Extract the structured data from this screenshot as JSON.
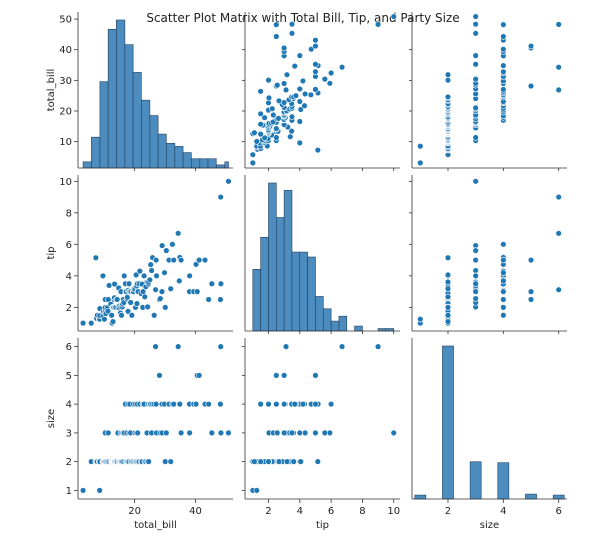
{
  "chart_data": {
    "type": "scatter",
    "title": "Scatter Plot Matrix with Total Bill, Tip, and Party Size",
    "variables": [
      "total_bill",
      "tip",
      "size"
    ],
    "axis_labels": {
      "total_bill": "total_bill",
      "tip": "tip",
      "size": "size"
    },
    "axis_ranges": {
      "total_bill": [
        1.4,
        52.3
      ],
      "tip": [
        0.5,
        10.4
      ],
      "size": [
        0.7,
        6.3
      ]
    },
    "ticks": {
      "total_bill": [
        10,
        20,
        30,
        40,
        50
      ],
      "tip": [
        2,
        4,
        6,
        8,
        10
      ],
      "size": [
        1,
        2,
        3,
        4,
        5,
        6
      ],
      "total_bill_x": [
        20,
        40
      ],
      "tip_x": [
        2,
        4,
        6,
        8,
        10
      ],
      "size_x": [
        2,
        4,
        6
      ]
    },
    "histograms": {
      "total_bill": {
        "bin_edges": [
          3.07,
          5.8,
          8.6,
          11.3,
          14.0,
          16.8,
          19.5,
          22.2,
          25.0,
          27.7,
          30.4,
          33.2,
          35.9,
          38.6,
          41.4,
          44.1,
          46.8,
          49.6,
          50.81
        ],
        "counts": [
          2,
          10,
          28,
          45,
          48,
          40,
          31,
          22,
          17,
          11,
          8,
          7,
          5,
          3,
          3,
          3,
          1,
          2
        ]
      },
      "tip": {
        "bin_edges": [
          1.0,
          1.5,
          2.0,
          2.5,
          3.0,
          3.5,
          4.0,
          4.5,
          5.0,
          5.5,
          6.0,
          6.5,
          7.0,
          7.5,
          8.0,
          8.5,
          9.0,
          9.5,
          10.0
        ],
        "counts": [
          25,
          38,
          60,
          46,
          57,
          32,
          32,
          30,
          14,
          9,
          4,
          6,
          0,
          2,
          0,
          0,
          1,
          1
        ]
      },
      "size": {
        "bin_edges": [
          0.8,
          1.2,
          1.8,
          2.2,
          2.8,
          3.2,
          3.8,
          4.2,
          4.8,
          5.2,
          5.8,
          6.2
        ],
        "counts": [
          4,
          0,
          156,
          0,
          38,
          0,
          37,
          0,
          5,
          0,
          4
        ]
      }
    },
    "points": {
      "total_bill": [
        3.07,
        5.75,
        7.25,
        7.51,
        7.74,
        8.35,
        8.51,
        8.52,
        8.58,
        9.55,
        9.6,
        9.78,
        10.07,
        10.27,
        10.33,
        10.34,
        10.59,
        11.02,
        11.24,
        11.35,
        11.61,
        12.16,
        12.46,
        12.6,
        12.69,
        12.9,
        13.0,
        13.03,
        13.13,
        13.27,
        13.39,
        13.42,
        13.51,
        13.81,
        14.07,
        14.26,
        14.48,
        14.78,
        15.01,
        15.04,
        15.36,
        15.48,
        15.53,
        15.69,
        15.98,
        16.04,
        16.27,
        16.43,
        16.58,
        16.97,
        17.07,
        17.26,
        17.46,
        17.59,
        17.82,
        17.92,
        18.15,
        18.29,
        18.43,
        18.69,
        18.78,
        19.08,
        19.44,
        19.65,
        19.81,
        20.08,
        20.23,
        20.29,
        20.49,
        20.65,
        20.76,
        20.9,
        21.01,
        21.16,
        21.5,
        21.7,
        22.12,
        22.42,
        22.67,
        22.76,
        23.1,
        23.33,
        23.68,
        24.06,
        24.27,
        24.52,
        24.59,
        25.0,
        25.28,
        25.56,
        25.89,
        26.41,
        26.88,
        27.05,
        27.2,
        28.15,
        28.44,
        28.97,
        29.03,
        29.8,
        30.06,
        30.4,
        31.27,
        31.85,
        32.4,
        32.83,
        34.3,
        34.65,
        34.83,
        35.26,
        38.01,
        38.07,
        39.42,
        40.17,
        40.55,
        41.19,
        43.11,
        44.3,
        45.35,
        48.17,
        48.27,
        48.33,
        50.81
      ],
      "tip": [
        1.0,
        1.0,
        5.15,
        1.3,
        1.5,
        1.25,
        1.25,
        1.48,
        1.92,
        1.45,
        4.0,
        1.73,
        1.25,
        1.71,
        2.0,
        2.5,
        1.61,
        1.98,
        1.76,
        2.5,
        3.39,
        2.2,
        1.5,
        1.0,
        2.0,
        1.1,
        2.0,
        2.0,
        2.0,
        2.5,
        2.61,
        3.48,
        2.0,
        2.0,
        2.5,
        2.5,
        2.0,
        3.23,
        2.09,
        1.96,
        1.64,
        2.02,
        3.0,
        1.5,
        2.03,
        2.2,
        2.5,
        2.3,
        4.0,
        3.5,
        3.0,
        3.0,
        2.54,
        2.64,
        1.75,
        3.08,
        3.5,
        3.0,
        3.0,
        2.31,
        3.0,
        1.5,
        3.0,
        3.0,
        3.18,
        3.15,
        2.01,
        2.0,
        4.06,
        3.35,
        2.24,
        3.5,
        3.0,
        3.0,
        3.5,
        4.3,
        2.88,
        3.48,
        2.0,
        3.0,
        4.0,
        2.67,
        3.31,
        3.6,
        2.03,
        3.48,
        3.61,
        3.75,
        4.71,
        4.34,
        5.16,
        1.5,
        3.12,
        5.0,
        4.0,
        2.5,
        2.56,
        3.0,
        5.92,
        4.2,
        2.0,
        5.6,
        5.0,
        3.18,
        6.0,
        5.0,
        6.7,
        3.68,
        5.17,
        5.0,
        3.0,
        4.0,
        3.0,
        4.73,
        3.0,
        5.0,
        5.0,
        2.5,
        3.5,
        2.5,
        9.0,
        3.5,
        10.0
      ],
      "size": [
        1,
        2,
        2,
        2,
        2,
        2,
        1,
        2,
        2,
        2,
        2,
        2,
        2,
        2,
        2,
        3,
        2,
        2,
        2,
        3,
        2,
        2,
        2,
        2,
        2,
        2,
        2,
        2,
        2,
        2,
        2,
        2,
        2,
        2,
        2,
        2,
        3,
        2,
        2,
        2,
        2,
        3,
        2,
        2,
        3,
        2,
        3,
        2,
        3,
        4,
        2,
        2,
        3,
        2,
        2,
        4,
        2,
        3,
        4,
        3,
        2,
        2,
        2,
        4,
        2,
        3,
        2,
        4,
        2,
        3,
        2,
        4,
        3,
        2,
        2,
        4,
        2,
        2,
        4,
        4,
        4,
        2,
        2,
        3,
        2,
        4,
        2,
        4,
        4,
        3,
        4,
        4,
        6,
        4,
        3,
        5,
        3,
        4,
        3,
        4,
        2,
        3,
        4,
        2,
        4,
        4,
        6,
        4,
        4,
        3,
        4,
        3,
        4,
        4,
        5,
        5,
        4,
        4,
        3,
        4,
        6,
        3,
        3
      ]
    }
  }
}
